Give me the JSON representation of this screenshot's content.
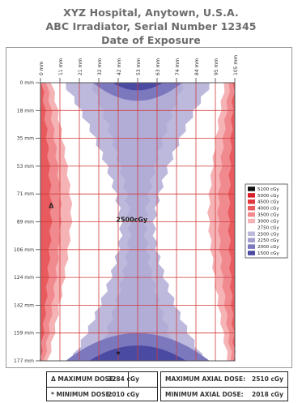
{
  "header": {
    "line1": "XYZ Hospital, Anytown, U.S.A.",
    "line2": "ABC Irradiator, Serial Number 12345",
    "line3": "Date of Exposure"
  },
  "chart_data": {
    "type": "heatmap",
    "x_ticks": [
      "0 mm",
      "11 mm",
      "21 mm",
      "32 mm",
      "42 mm",
      "53 mm",
      "63 mm",
      "74 mm",
      "84 mm",
      "95 mm",
      "105 mm"
    ],
    "y_ticks": [
      "0 mm",
      "18 mm",
      "35 mm",
      "53 mm",
      "71 mm",
      "89 mm",
      "106 mm",
      "124 mm",
      "142 mm",
      "159 mm",
      "177 mm"
    ],
    "grid": true,
    "center_label": "2500cGy",
    "max_marker": "Δ",
    "min_marker": "*",
    "legend_position": "right",
    "legend": [
      {
        "label": "5100 cGy",
        "color": "#111111"
      },
      {
        "label": "5000 cGy",
        "color": "#d8202a"
      },
      {
        "label": "4500 cGy",
        "color": "#e2393e"
      },
      {
        "label": "4000 cGy",
        "color": "#e85a5e"
      },
      {
        "label": "3500 cGy",
        "color": "#f08a8e"
      },
      {
        "label": "3000 cGy",
        "color": "#f5b3b6"
      },
      {
        "label": "2750 cGy",
        "color": "#ffffff"
      },
      {
        "label": "2500 cGy",
        "color": "#bdb9dc"
      },
      {
        "label": "2250 cGy",
        "color": "#a39fd0"
      },
      {
        "label": "2000 cGy",
        "color": "#7c78be"
      },
      {
        "label": "1500 cGy",
        "color": "#4a4aa3"
      }
    ]
  },
  "summary": {
    "max_label": "Δ MAXIMUM DOSE:",
    "max_value": "3284  cGy",
    "min_label": "*   MINIMUM DOSE:",
    "min_value": "2010  cGy",
    "max_axial_label": "MAXIMUM AXIAL DOSE:",
    "max_axial_value": "2510  cGy",
    "min_axial_label": "MINIMUM AXIAL DOSE:",
    "min_axial_value": "2018  cGy"
  }
}
